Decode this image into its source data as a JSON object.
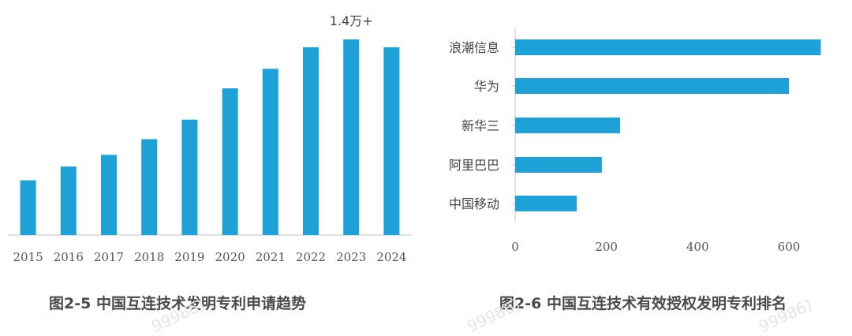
{
  "colors": {
    "bar": "#1da1d6",
    "axis": "#cfcfcf",
    "text": "#444444"
  },
  "watermarks": [
    "99986)",
    "99986)",
    "99986)"
  ],
  "chart_data": [
    {
      "type": "bar",
      "orientation": "vertical",
      "caption": "图2-5 中国互连技术发明专利申请趋势",
      "categories": [
        "2015",
        "2016",
        "2017",
        "2018",
        "2019",
        "2020",
        "2021",
        "2022",
        "2023",
        "2024"
      ],
      "values": [
        0.28,
        0.35,
        0.41,
        0.49,
        0.59,
        0.75,
        0.85,
        0.96,
        1.0,
        0.96
      ],
      "annotation": "1.4万+",
      "annotation_index": 8,
      "grid": false
    },
    {
      "type": "bar",
      "orientation": "horizontal",
      "caption": "图2-6 中国互连技术有效授权发明专利排名",
      "categories": [
        "浪潮信息",
        "华为",
        "新华三",
        "阿里巴巴",
        "中国移动"
      ],
      "values": [
        670,
        600,
        230,
        190,
        135
      ],
      "xticks": [
        "0",
        "200",
        "400",
        "600"
      ],
      "xlim": [
        0,
        700
      ],
      "grid": false
    }
  ]
}
